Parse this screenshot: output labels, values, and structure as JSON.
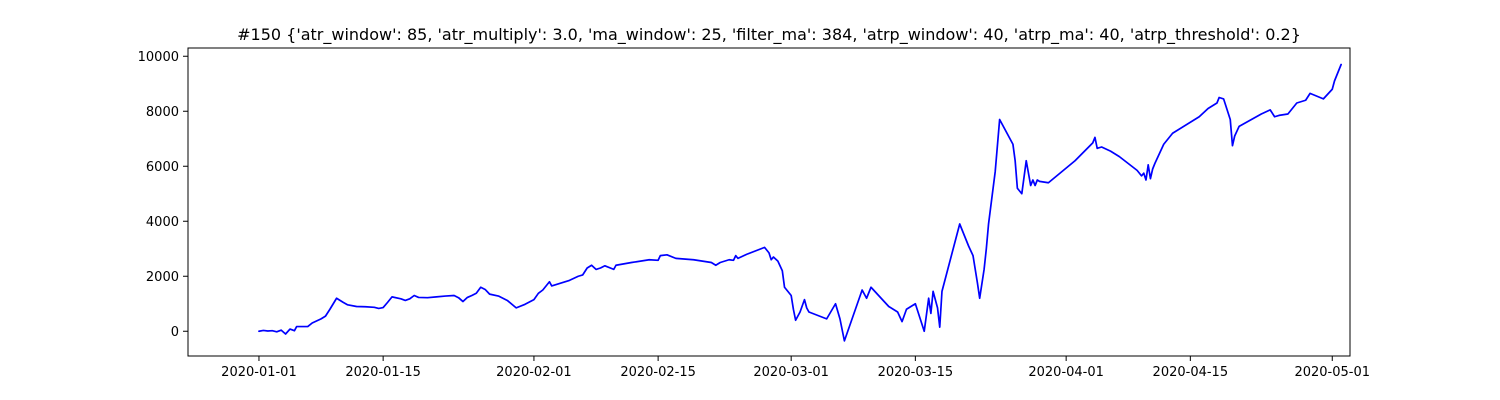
{
  "chart_data": {
    "type": "line",
    "title": "#150 {'atr_window': 85, 'atr_multiply': 3.0, 'ma_window': 25, 'filter_ma': 384, 'atrp_window': 40, 'atrp_ma': 40, 'atrp_threshold': 0.2}",
    "xlabel": "",
    "ylabel": "",
    "x_axis": {
      "kind": "date",
      "range": [
        "2019-12-24",
        "2020-05-03"
      ],
      "ticks": [
        "2020-01-01",
        "2020-01-15",
        "2020-02-01",
        "2020-02-15",
        "2020-03-01",
        "2020-03-15",
        "2020-04-01",
        "2020-04-15",
        "2020-05-01"
      ]
    },
    "y_axis": {
      "range": [
        -900,
        10300
      ],
      "ticks": [
        0,
        2000,
        4000,
        6000,
        8000,
        10000
      ]
    },
    "grid": false,
    "legend": "none",
    "series": [
      {
        "color": "#0000ff",
        "points": [
          [
            "2020-01-01",
            0
          ],
          [
            "2020-01-01T12:00",
            30
          ],
          [
            "2020-01-02",
            10
          ],
          [
            "2020-01-02T12:00",
            20
          ],
          [
            "2020-01-03",
            -20
          ],
          [
            "2020-01-03T12:00",
            40
          ],
          [
            "2020-01-04",
            -100
          ],
          [
            "2020-01-04T12:00",
            80
          ],
          [
            "2020-01-05",
            20
          ],
          [
            "2020-01-05T06:00",
            170
          ],
          [
            "2020-01-06",
            170
          ],
          [
            "2020-01-06T12:00",
            170
          ],
          [
            "2020-01-07",
            300
          ],
          [
            "2020-01-08",
            450
          ],
          [
            "2020-01-08T12:00",
            550
          ],
          [
            "2020-01-09",
            800
          ],
          [
            "2020-01-09T18:00",
            1200
          ],
          [
            "2020-01-10T12:00",
            1050
          ],
          [
            "2020-01-11",
            960
          ],
          [
            "2020-01-12",
            900
          ],
          [
            "2020-01-13",
            890
          ],
          [
            "2020-01-14",
            870
          ],
          [
            "2020-01-14T12:00",
            830
          ],
          [
            "2020-01-15",
            860
          ],
          [
            "2020-01-15T12:00",
            1050
          ],
          [
            "2020-01-16",
            1250
          ],
          [
            "2020-01-17",
            1180
          ],
          [
            "2020-01-17T12:00",
            1120
          ],
          [
            "2020-01-18",
            1180
          ],
          [
            "2020-01-18T12:00",
            1300
          ],
          [
            "2020-01-19",
            1230
          ],
          [
            "2020-01-20",
            1220
          ],
          [
            "2020-01-21",
            1250
          ],
          [
            "2020-01-22",
            1280
          ],
          [
            "2020-01-23",
            1300
          ],
          [
            "2020-01-23T12:00",
            1220
          ],
          [
            "2020-01-24",
            1080
          ],
          [
            "2020-01-24T12:00",
            1230
          ],
          [
            "2020-01-25",
            1300
          ],
          [
            "2020-01-25T12:00",
            1380
          ],
          [
            "2020-01-26",
            1600
          ],
          [
            "2020-01-26T12:00",
            1520
          ],
          [
            "2020-01-27",
            1350
          ],
          [
            "2020-01-28",
            1280
          ],
          [
            "2020-01-29",
            1120
          ],
          [
            "2020-01-30",
            850
          ],
          [
            "2020-01-31",
            980
          ],
          [
            "2020-02-01",
            1150
          ],
          [
            "2020-02-01T12:00",
            1380
          ],
          [
            "2020-02-02",
            1500
          ],
          [
            "2020-02-02T12:00",
            1700
          ],
          [
            "2020-02-02T18:00",
            1800
          ],
          [
            "2020-02-03",
            1650
          ],
          [
            "2020-02-04",
            1750
          ],
          [
            "2020-02-05",
            1850
          ],
          [
            "2020-02-06",
            2000
          ],
          [
            "2020-02-06T12:00",
            2050
          ],
          [
            "2020-02-07",
            2300
          ],
          [
            "2020-02-07T12:00",
            2400
          ],
          [
            "2020-02-08",
            2250
          ],
          [
            "2020-02-08T12:00",
            2300
          ],
          [
            "2020-02-09",
            2380
          ],
          [
            "2020-02-10",
            2250
          ],
          [
            "2020-02-10T06:00",
            2400
          ],
          [
            "2020-02-12",
            2500
          ],
          [
            "2020-02-14",
            2600
          ],
          [
            "2020-02-15",
            2580
          ],
          [
            "2020-02-15T06:00",
            2750
          ],
          [
            "2020-02-16",
            2780
          ],
          [
            "2020-02-17",
            2650
          ],
          [
            "2020-02-19",
            2600
          ],
          [
            "2020-02-20",
            2550
          ],
          [
            "2020-02-21",
            2500
          ],
          [
            "2020-02-21T12:00",
            2400
          ],
          [
            "2020-02-22",
            2500
          ],
          [
            "2020-02-23",
            2600
          ],
          [
            "2020-02-23T12:00",
            2580
          ],
          [
            "2020-02-23T18:00",
            2750
          ],
          [
            "2020-02-24",
            2650
          ],
          [
            "2020-02-25",
            2800
          ],
          [
            "2020-02-27",
            3050
          ],
          [
            "2020-02-27T12:00",
            2850
          ],
          [
            "2020-02-27T18:00",
            2600
          ],
          [
            "2020-02-28",
            2700
          ],
          [
            "2020-02-28T12:00",
            2550
          ],
          [
            "2020-02-29",
            2200
          ],
          [
            "2020-02-29T06:00",
            1600
          ],
          [
            "2020-02-29T12:00",
            1500
          ],
          [
            "2020-03-01",
            1300
          ],
          [
            "2020-03-01T06:00",
            800
          ],
          [
            "2020-03-01T12:00",
            400
          ],
          [
            "2020-03-02",
            700
          ],
          [
            "2020-03-02T12:00",
            1150
          ],
          [
            "2020-03-02T18:00",
            850
          ],
          [
            "2020-03-03",
            700
          ],
          [
            "2020-03-05",
            450
          ],
          [
            "2020-03-06",
            1000
          ],
          [
            "2020-03-06T12:00",
            450
          ],
          [
            "2020-03-07",
            -350
          ],
          [
            "2020-03-09",
            1500
          ],
          [
            "2020-03-09T12:00",
            1200
          ],
          [
            "2020-03-10",
            1600
          ],
          [
            "2020-03-12",
            900
          ],
          [
            "2020-03-13",
            700
          ],
          [
            "2020-03-13T12:00",
            350
          ],
          [
            "2020-03-14",
            800
          ],
          [
            "2020-03-15",
            1000
          ],
          [
            "2020-03-15T12:00",
            500
          ],
          [
            "2020-03-16",
            0
          ],
          [
            "2020-03-16T12:00",
            1200
          ],
          [
            "2020-03-16T18:00",
            650
          ],
          [
            "2020-03-17",
            1450
          ],
          [
            "2020-03-17T12:00",
            850
          ],
          [
            "2020-03-17T18:00",
            150
          ],
          [
            "2020-03-18",
            1450
          ],
          [
            "2020-03-20",
            3900
          ],
          [
            "2020-03-21",
            3100
          ],
          [
            "2020-03-21T12:00",
            2750
          ],
          [
            "2020-03-22",
            1750
          ],
          [
            "2020-03-22T06:00",
            1200
          ],
          [
            "2020-03-22T18:00",
            2250
          ],
          [
            "2020-03-23",
            3000
          ],
          [
            "2020-03-23T06:00",
            3900
          ],
          [
            "2020-03-24",
            5800
          ],
          [
            "2020-03-24T12:00",
            7700
          ],
          [
            "2020-03-26",
            6800
          ],
          [
            "2020-03-26T06:00",
            6200
          ],
          [
            "2020-03-26T12:00",
            5200
          ],
          [
            "2020-03-27",
            5000
          ],
          [
            "2020-03-27T12:00",
            6200
          ],
          [
            "2020-03-28",
            5300
          ],
          [
            "2020-03-28T06:00",
            5500
          ],
          [
            "2020-03-28T12:00",
            5300
          ],
          [
            "2020-03-28T18:00",
            5500
          ],
          [
            "2020-03-29",
            5450
          ],
          [
            "2020-03-30",
            5400
          ],
          [
            "2020-04-02",
            6200
          ],
          [
            "2020-04-04",
            6850
          ],
          [
            "2020-04-04T06:00",
            7050
          ],
          [
            "2020-04-04T12:00",
            6650
          ],
          [
            "2020-04-05",
            6700
          ],
          [
            "2020-04-06",
            6550
          ],
          [
            "2020-04-07",
            6350
          ],
          [
            "2020-04-09",
            5850
          ],
          [
            "2020-04-09T12:00",
            5650
          ],
          [
            "2020-04-09T18:00",
            5750
          ],
          [
            "2020-04-10",
            5500
          ],
          [
            "2020-04-10T06:00",
            6050
          ],
          [
            "2020-04-10T12:00",
            5550
          ],
          [
            "2020-04-10T18:00",
            5900
          ],
          [
            "2020-04-11",
            6100
          ],
          [
            "2020-04-12",
            6800
          ],
          [
            "2020-04-13",
            7200
          ],
          [
            "2020-04-16",
            7800
          ],
          [
            "2020-04-17",
            8100
          ],
          [
            "2020-04-18",
            8300
          ],
          [
            "2020-04-18T06:00",
            8500
          ],
          [
            "2020-04-18T18:00",
            8450
          ],
          [
            "2020-04-19",
            8200
          ],
          [
            "2020-04-19T12:00",
            7700
          ],
          [
            "2020-04-19T18:00",
            6750
          ],
          [
            "2020-04-20",
            7100
          ],
          [
            "2020-04-20T12:00",
            7450
          ],
          [
            "2020-04-23",
            7900
          ],
          [
            "2020-04-24",
            8050
          ],
          [
            "2020-04-24T12:00",
            7800
          ],
          [
            "2020-04-25",
            7850
          ],
          [
            "2020-04-26",
            7900
          ],
          [
            "2020-04-27",
            8300
          ],
          [
            "2020-04-28",
            8400
          ],
          [
            "2020-04-28T12:00",
            8650
          ],
          [
            "2020-04-30",
            8450
          ],
          [
            "2020-05-01",
            8800
          ],
          [
            "2020-05-01T06:00",
            9100
          ],
          [
            "2020-05-01T12:00",
            9300
          ],
          [
            "2020-05-02",
            9700
          ]
        ]
      }
    ]
  }
}
